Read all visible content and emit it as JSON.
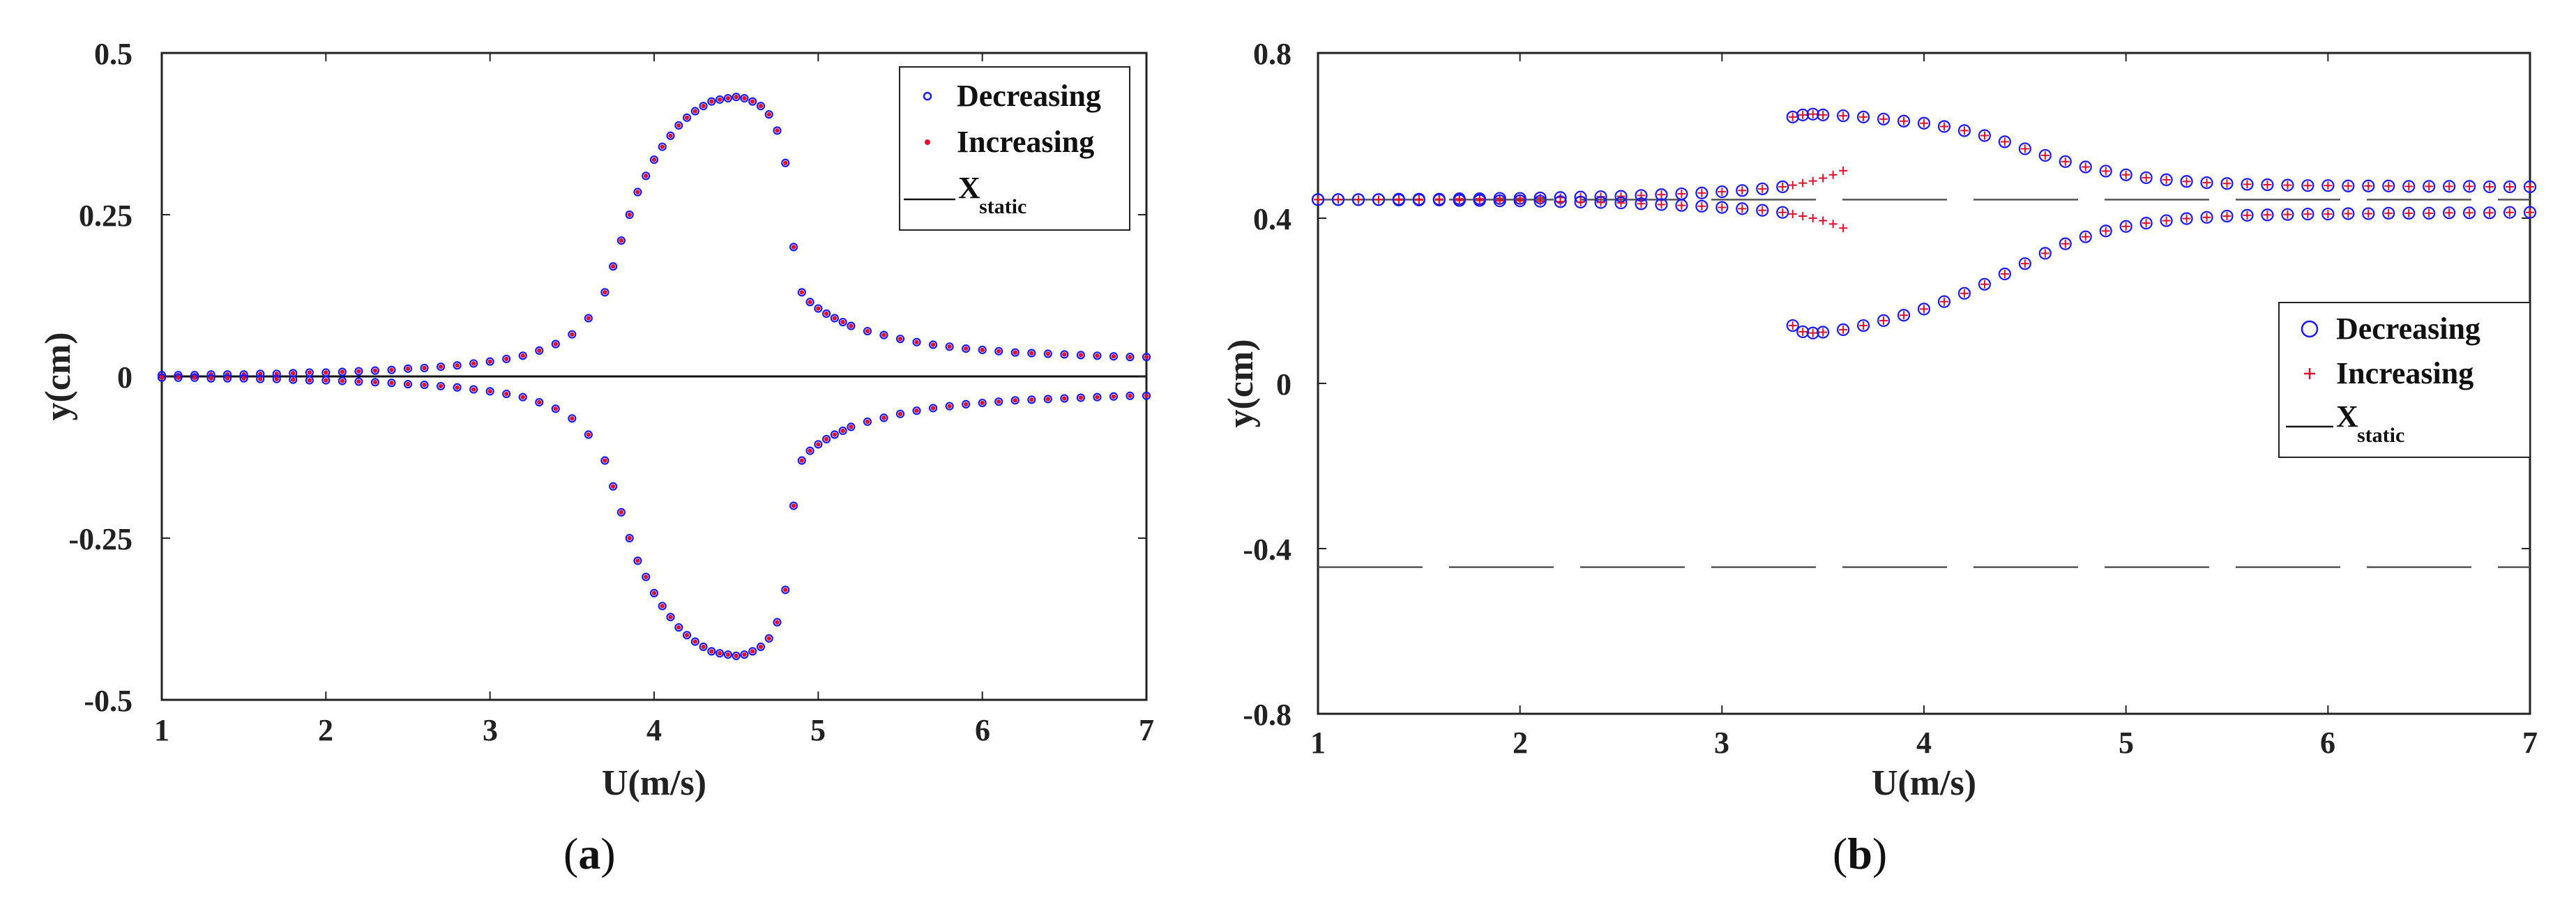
{
  "chart_data": [
    {
      "panel": "a",
      "type": "scatter",
      "xlabel": "U(m/s)",
      "ylabel": "y(cm)",
      "xlim": [
        1,
        7
      ],
      "ylim": [
        -0.5,
        0.5
      ],
      "xticks": [
        "1",
        "2",
        "3",
        "4",
        "5",
        "6",
        "7"
      ],
      "yticks": [
        "-0.5",
        "-0.25",
        "0",
        "0.25",
        "0.5"
      ],
      "legend_position": "top-right",
      "legend": {
        "decreasing": "Decreasing",
        "increasing": "Increasing",
        "static_main": "X",
        "static_sub": "static"
      },
      "static_line_y": 0,
      "series": [
        {
          "name": "Decreasing",
          "marker": "circle",
          "color": "#1a1aff",
          "x": [
            1.0,
            1.1,
            1.2,
            1.3,
            1.4,
            1.5,
            1.6,
            1.7,
            1.8,
            1.9,
            2.0,
            2.1,
            2.2,
            2.3,
            2.4,
            2.5,
            2.6,
            2.7,
            2.8,
            2.9,
            3.0,
            3.1,
            3.2,
            3.3,
            3.4,
            3.5,
            3.6,
            3.7,
            3.75,
            3.8,
            3.85,
            3.9,
            3.95,
            4.0,
            4.05,
            4.1,
            4.15,
            4.2,
            4.25,
            4.3,
            4.35,
            4.4,
            4.45,
            4.5,
            4.55,
            4.6,
            4.65,
            4.7,
            4.75,
            4.8,
            4.85,
            4.9,
            4.95,
            5.0,
            5.05,
            5.1,
            5.15,
            5.2,
            5.3,
            5.4,
            5.5,
            5.6,
            5.7,
            5.8,
            5.9,
            6.0,
            6.1,
            6.2,
            6.3,
            6.4,
            6.5,
            6.6,
            6.7,
            6.8,
            6.9,
            7.0
          ],
          "y_upper": [
            0.002,
            0.002,
            0.002,
            0.003,
            0.003,
            0.003,
            0.004,
            0.004,
            0.005,
            0.006,
            0.006,
            0.007,
            0.008,
            0.009,
            0.01,
            0.012,
            0.013,
            0.015,
            0.017,
            0.02,
            0.023,
            0.027,
            0.032,
            0.04,
            0.05,
            0.065,
            0.09,
            0.13,
            0.17,
            0.21,
            0.25,
            0.285,
            0.31,
            0.335,
            0.355,
            0.372,
            0.388,
            0.4,
            0.41,
            0.418,
            0.425,
            0.428,
            0.43,
            0.432,
            0.43,
            0.425,
            0.418,
            0.405,
            0.38,
            0.33,
            0.2,
            0.13,
            0.115,
            0.105,
            0.097,
            0.09,
            0.084,
            0.078,
            0.07,
            0.064,
            0.058,
            0.053,
            0.049,
            0.046,
            0.043,
            0.041,
            0.039,
            0.037,
            0.036,
            0.035,
            0.034,
            0.033,
            0.032,
            0.031,
            0.03,
            0.03
          ]
        },
        {
          "name": "Increasing",
          "marker": "dot",
          "color": "#e0102a"
        }
      ]
    },
    {
      "panel": "b",
      "type": "scatter",
      "xlabel": "U(m/s)",
      "ylabel": "y(cm)",
      "xlim": [
        1,
        7
      ],
      "ylim": [
        -0.8,
        0.8
      ],
      "xticks": [
        "1",
        "2",
        "3",
        "4",
        "5",
        "6",
        "7"
      ],
      "yticks": [
        "-0.8",
        "-0.4",
        "0",
        "0.4",
        "0.8"
      ],
      "legend_position": "right",
      "legend": {
        "decreasing": "Decreasing",
        "increasing": "Increasing",
        "static_main": "X",
        "static_sub": "static"
      },
      "static_lines_y": [
        0.445,
        -0.445
      ],
      "series": [
        {
          "name": "Decreasing",
          "marker": "circle",
          "color": "#1a1aff",
          "branch1_x": [
            1.0,
            1.1,
            1.2,
            1.3,
            1.4,
            1.5,
            1.6,
            1.7,
            1.8,
            1.9,
            2.0,
            2.1,
            2.2,
            2.3,
            2.4,
            2.5,
            2.6,
            2.7,
            2.8,
            2.9,
            3.0,
            3.1,
            3.2,
            3.3
          ],
          "branch1_upper": [
            0.445,
            0.445,
            0.445,
            0.445,
            0.446,
            0.446,
            0.446,
            0.447,
            0.447,
            0.448,
            0.448,
            0.449,
            0.45,
            0.451,
            0.452,
            0.453,
            0.455,
            0.457,
            0.459,
            0.461,
            0.464,
            0.467,
            0.471,
            0.476
          ],
          "branch1_lower": [
            0.445,
            0.445,
            0.445,
            0.445,
            0.444,
            0.444,
            0.444,
            0.443,
            0.443,
            0.442,
            0.442,
            0.441,
            0.44,
            0.439,
            0.438,
            0.437,
            0.435,
            0.433,
            0.431,
            0.429,
            0.426,
            0.423,
            0.419,
            0.414
          ],
          "branch2_x": [
            3.35,
            3.4,
            3.45,
            3.5,
            3.6,
            3.7,
            3.8,
            3.9,
            4.0,
            4.1,
            4.2,
            4.3,
            4.4,
            4.5,
            4.6,
            4.7,
            4.8,
            4.9,
            5.0,
            5.1,
            5.2,
            5.3,
            5.4,
            5.5,
            5.6,
            5.7,
            5.8,
            5.9,
            6.0,
            6.1,
            6.2,
            6.3,
            6.4,
            6.5,
            6.6,
            6.7,
            6.8,
            6.9,
            7.0
          ],
          "branch2_upper": [
            0.645,
            0.65,
            0.652,
            0.65,
            0.648,
            0.645,
            0.64,
            0.635,
            0.63,
            0.622,
            0.612,
            0.6,
            0.585,
            0.568,
            0.552,
            0.537,
            0.524,
            0.514,
            0.505,
            0.498,
            0.493,
            0.489,
            0.486,
            0.484,
            0.482,
            0.481,
            0.48,
            0.479,
            0.479,
            0.478,
            0.478,
            0.478,
            0.477,
            0.477,
            0.477,
            0.477,
            0.476,
            0.476,
            0.476
          ],
          "branch2_lower": [
            0.14,
            0.125,
            0.122,
            0.124,
            0.13,
            0.14,
            0.152,
            0.165,
            0.18,
            0.198,
            0.218,
            0.24,
            0.265,
            0.29,
            0.315,
            0.338,
            0.355,
            0.369,
            0.38,
            0.388,
            0.394,
            0.399,
            0.402,
            0.405,
            0.407,
            0.408,
            0.409,
            0.41,
            0.41,
            0.411,
            0.411,
            0.412,
            0.412,
            0.412,
            0.413,
            0.413,
            0.413,
            0.414,
            0.414
          ]
        },
        {
          "name": "Increasing",
          "marker": "plus",
          "color": "#e0102a",
          "tail_x": [
            3.35,
            3.4,
            3.45,
            3.5,
            3.55,
            3.6
          ],
          "tail_upper": [
            0.48,
            0.485,
            0.49,
            0.497,
            0.505,
            0.515
          ],
          "tail_lower": [
            0.41,
            0.405,
            0.4,
            0.394,
            0.386,
            0.376
          ]
        }
      ]
    }
  ],
  "panel_labels": {
    "a_open": "(",
    "a_letter": "a",
    "a_close": ")",
    "b_open": "(",
    "b_letter": "b",
    "b_close": ")"
  }
}
